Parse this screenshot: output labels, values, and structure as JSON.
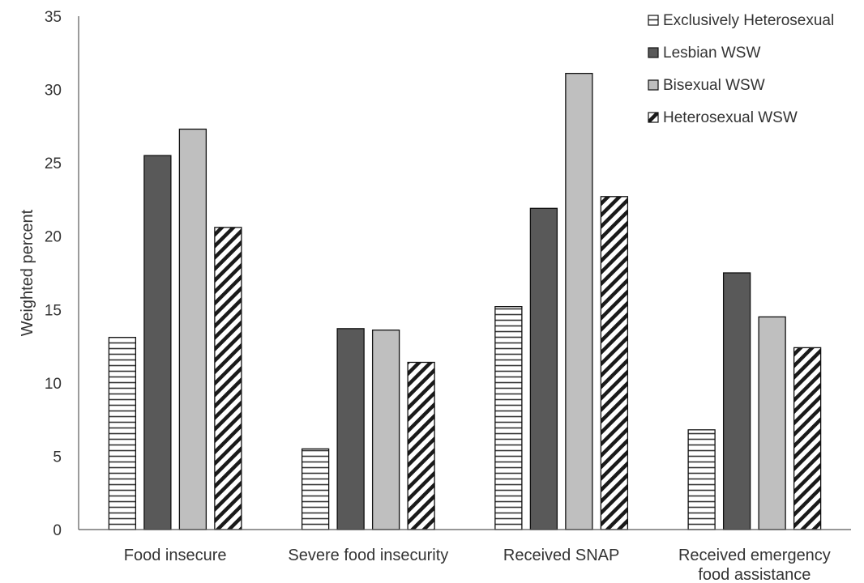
{
  "chart_data": {
    "type": "bar",
    "categories": [
      [
        "Food insecure"
      ],
      [
        "Severe food insecurity"
      ],
      [
        "Received SNAP"
      ],
      [
        "Received emergency",
        "food assistance"
      ]
    ],
    "series": [
      {
        "name": "Exclusively Heterosexual",
        "values": [
          13.1,
          5.5,
          15.2,
          6.8
        ],
        "pattern": "horizontal-lines",
        "color": "#333333"
      },
      {
        "name": "Lesbian WSW",
        "values": [
          25.5,
          13.7,
          21.9,
          17.5
        ],
        "pattern": "solid",
        "color": "#595959"
      },
      {
        "name": "Bisexual WSW",
        "values": [
          27.3,
          13.6,
          31.1,
          14.5
        ],
        "pattern": "solid",
        "color": "#bfbfbf"
      },
      {
        "name": "Heterosexual WSW",
        "values": [
          20.6,
          11.4,
          22.7,
          12.4
        ],
        "pattern": "diagonal-lines",
        "color": "#1a1a1a"
      }
    ],
    "ylabel": "Weighted percent",
    "xlabel": "",
    "title": "",
    "ylim": [
      0,
      35
    ],
    "yticks": [
      0,
      5,
      10,
      15,
      20,
      25,
      30,
      35
    ],
    "grid": false,
    "legend_position": "top-right"
  }
}
